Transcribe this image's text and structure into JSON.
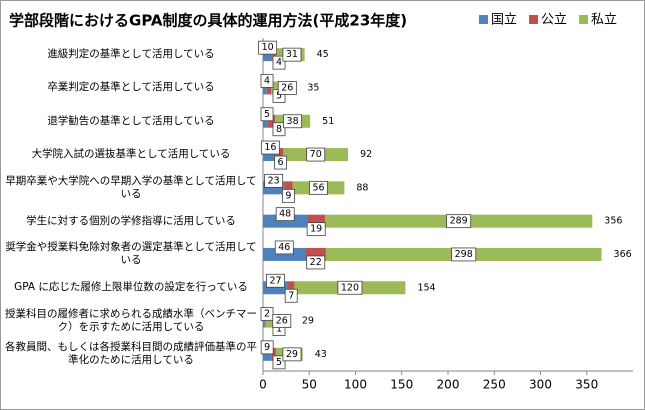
{
  "chart_data": {
    "type": "stacked-bar-horizontal",
    "title": "学部段階におけるGPA制度の具体的運用方法(平成23年度)",
    "categories": [
      "進級判定の基準として活用している",
      "卒業判定の基準として活用している",
      "退学勧告の基準として活用している",
      "大学院入試の選抜基準として活用している",
      "早期卒業や大学院への早期入学の基準として活用している",
      "学生に対する個別の学修指導に活用している",
      "奨学金や授業料免除対象者の選定基準として活用している",
      "GPA に応じた履修上限単位数の設定を行っている",
      "授業科目の履修者に求められる成績水準（ベンチマーク）を示すために活用している",
      "各教員間、もしくは各授業科目間の成績評価基準の平準化のために活用している"
    ],
    "series": [
      {
        "name": "国立",
        "color": "#4f81bd",
        "values": [
          10,
          4,
          5,
          16,
          23,
          48,
          46,
          27,
          2,
          9
        ]
      },
      {
        "name": "公立",
        "color": "#c0504d",
        "values": [
          4,
          5,
          8,
          6,
          9,
          19,
          22,
          7,
          1,
          5
        ]
      },
      {
        "name": "私立",
        "color": "#9bbb59",
        "values": [
          31,
          26,
          38,
          70,
          56,
          289,
          298,
          120,
          26,
          29
        ]
      }
    ],
    "totals": [
      45,
      35,
      51,
      92,
      88,
      356,
      366,
      154,
      29,
      43
    ],
    "xlim": [
      0,
      400
    ],
    "xticks": [
      0,
      50,
      100,
      150,
      200,
      250,
      300,
      350
    ],
    "grid": false,
    "legend": "top-right"
  }
}
